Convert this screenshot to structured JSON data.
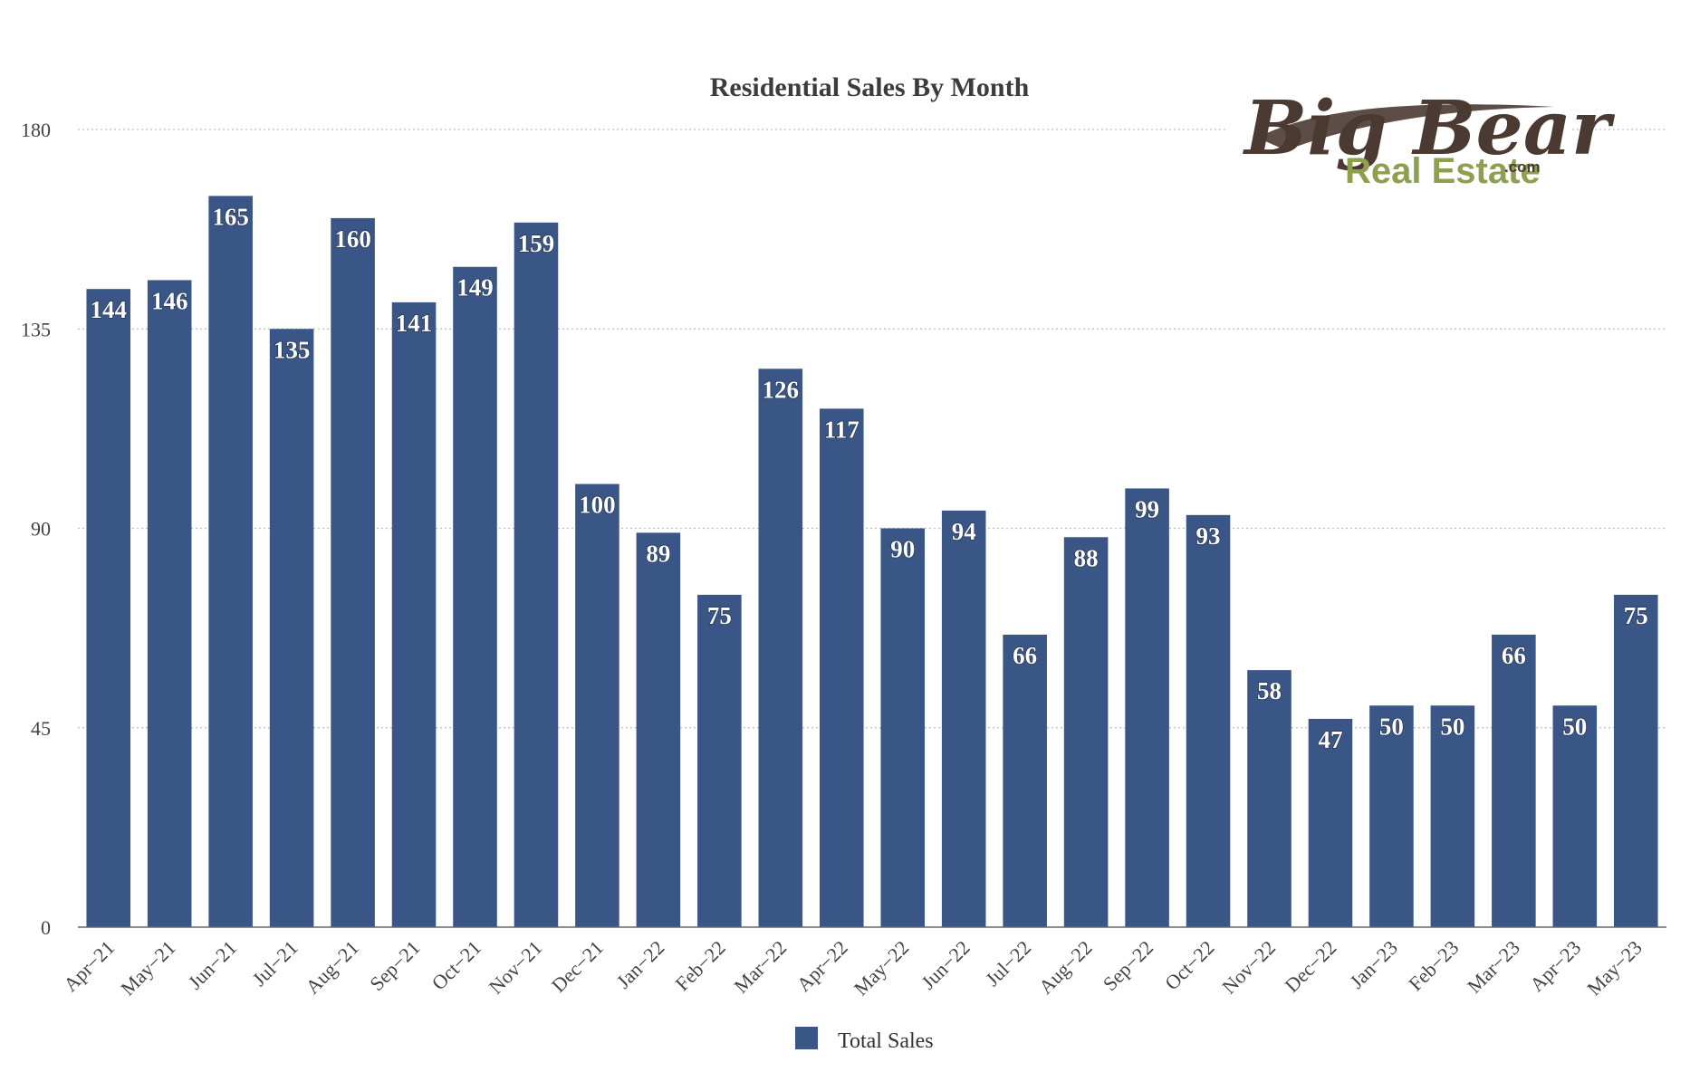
{
  "logo": {
    "name": "Big Bear",
    "sub": "Real Estate",
    "tld": ".com",
    "colors": {
      "name": "#4a3a32",
      "sub": "#8ea050"
    }
  },
  "legend": {
    "position": "bottom-center"
  },
  "colors": {
    "bar": "#3a5687",
    "grid": "#bdbdbd",
    "axis": "#666666"
  },
  "chart_data": {
    "type": "bar",
    "title": "Residential Sales By Month",
    "xlabel": "",
    "ylabel": "",
    "ylim": [
      0,
      180
    ],
    "yticks": [
      0,
      45,
      90,
      135,
      180
    ],
    "grid": true,
    "categories": [
      "Apr−21",
      "May−21",
      "Jun−21",
      "Jul−21",
      "Aug−21",
      "Sep−21",
      "Oct−21",
      "Nov−21",
      "Dec−21",
      "Jan−22",
      "Feb−22",
      "Mar−22",
      "Apr−22",
      "May−22",
      "Jun−22",
      "Jul−22",
      "Aug−22",
      "Sep−22",
      "Oct−22",
      "Nov−22",
      "Dec−22",
      "Jan−23",
      "Feb−23",
      "Mar−23",
      "Apr−23",
      "May−23"
    ],
    "series": [
      {
        "name": "Total Sales",
        "color": "#3a5687",
        "values": [
          144,
          146,
          165,
          135,
          160,
          141,
          149,
          159,
          100,
          89,
          75,
          126,
          117,
          90,
          94,
          66,
          88,
          99,
          93,
          58,
          47,
          50,
          50,
          66,
          50,
          75
        ]
      }
    ]
  }
}
